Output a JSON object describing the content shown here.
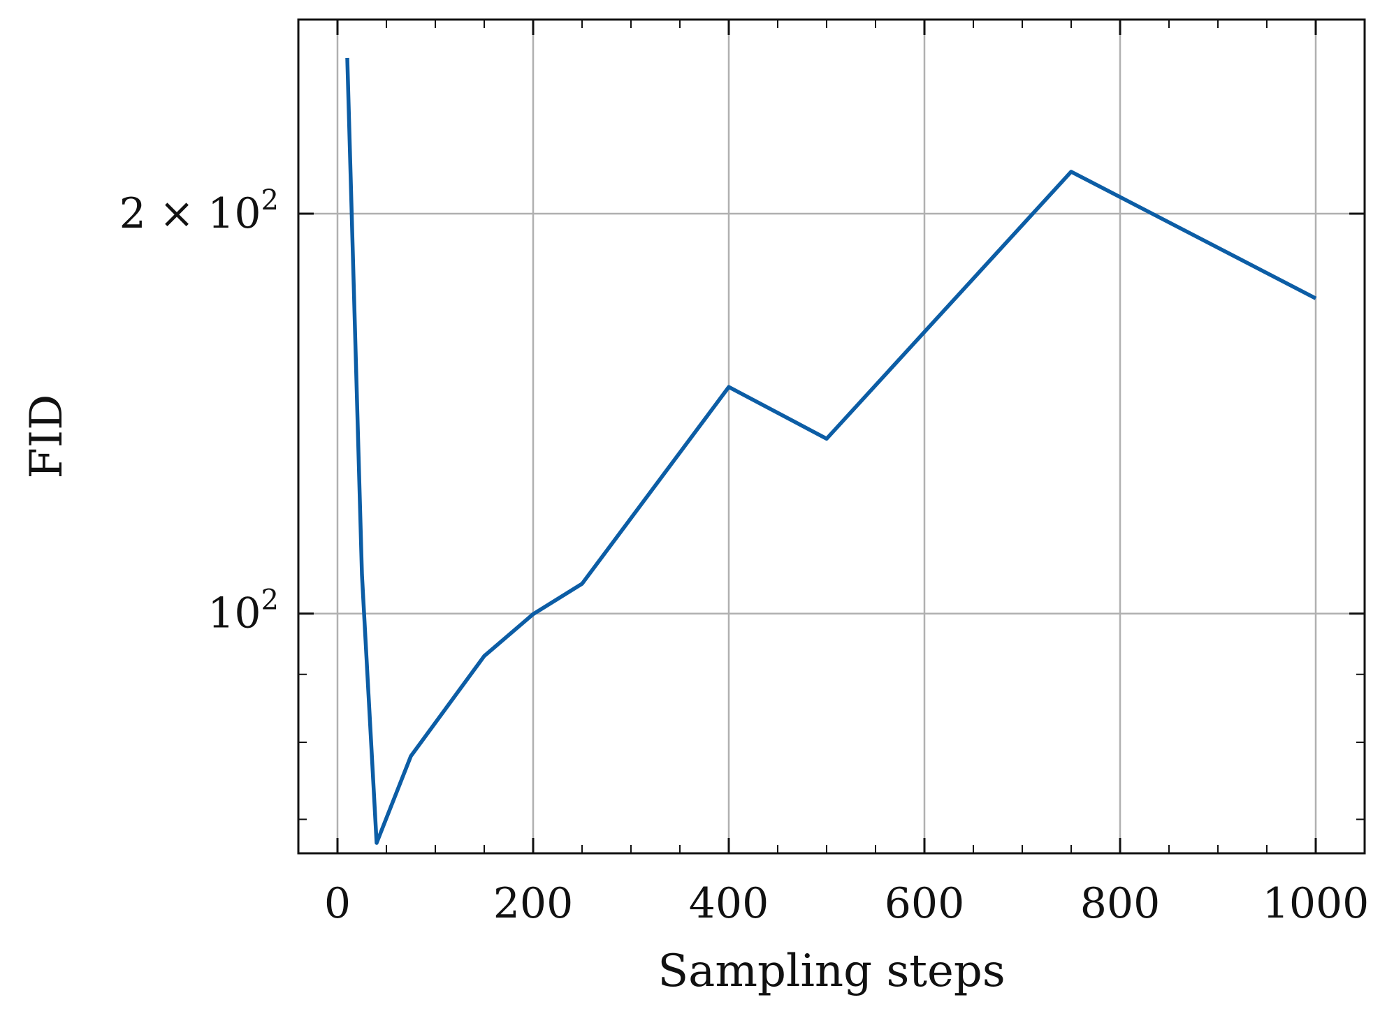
{
  "chart_data": {
    "type": "line",
    "title": "",
    "xlabel": "Sampling steps",
    "ylabel": "FID",
    "xlim": [
      -40,
      1050
    ],
    "ylim": [
      66,
      280
    ],
    "yscale": "log",
    "grid": true,
    "legend": "none",
    "x_ticks": [
      {
        "value": 0,
        "label": "0"
      },
      {
        "value": 200,
        "label": "200"
      },
      {
        "value": 400,
        "label": "400"
      },
      {
        "value": 600,
        "label": "600"
      },
      {
        "value": 800,
        "label": "800"
      },
      {
        "value": 1000,
        "label": "1000"
      }
    ],
    "x_minor_ticks": [
      50,
      100,
      150,
      250,
      300,
      350,
      450,
      500,
      550,
      650,
      700,
      750,
      850,
      900,
      950
    ],
    "y_ticks": [
      {
        "value": 100,
        "base": "10",
        "exponent": "2",
        "prefix": ""
      },
      {
        "value": 200,
        "base": "10",
        "exponent": "2",
        "prefix": "2 × "
      }
    ],
    "y_minor_ticks": [
      70,
      80,
      90
    ],
    "series": [
      {
        "color": "#0C5DA5",
        "x": [
          10,
          25,
          40,
          75,
          150,
          200,
          250,
          400,
          500,
          750,
          1000
        ],
        "y": [
          262,
          107,
          67.2,
          78.1,
          92.9,
          99.9,
          105.3,
          148.1,
          135.4,
          215.1,
          172.7
        ]
      }
    ],
    "colors": {
      "line": "#0C5DA5",
      "grid": "#b0b0b0",
      "axis": "#111111"
    }
  }
}
